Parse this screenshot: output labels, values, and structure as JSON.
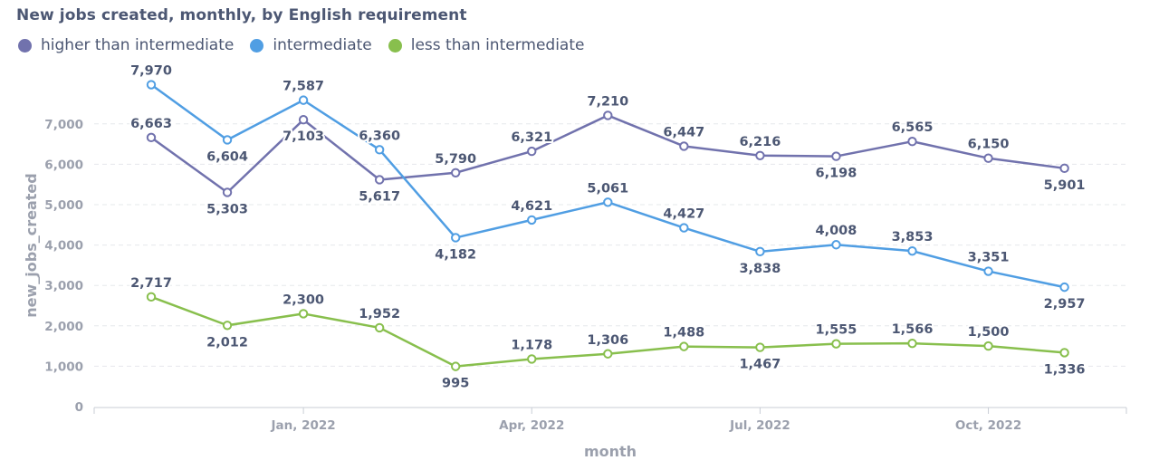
{
  "chart_data": {
    "type": "line",
    "title": "New jobs created, monthly, by English requirement",
    "xlabel": "month",
    "ylabel": "new_jobs_created",
    "ylim": [
      0,
      8000
    ],
    "yticks": [
      0,
      1000,
      2000,
      3000,
      4000,
      5000,
      6000,
      7000
    ],
    "ytick_labels": [
      "0",
      "1,000",
      "2,000",
      "3,000",
      "4,000",
      "5,000",
      "6,000",
      "7,000"
    ],
    "x": [
      "2021-11",
      "2021-12",
      "2022-01",
      "2022-02",
      "2022-03",
      "2022-04",
      "2022-05",
      "2022-06",
      "2022-07",
      "2022-08",
      "2022-09",
      "2022-10",
      "2022-11"
    ],
    "xticks": [
      {
        "index": 2,
        "label": "Jan, 2022"
      },
      {
        "index": 5,
        "label": "Apr, 2022"
      },
      {
        "index": 8,
        "label": "Jul, 2022"
      },
      {
        "index": 11,
        "label": "Oct, 2022"
      }
    ],
    "grid": "horizontal dashed",
    "legend_position": "top-left",
    "series": [
      {
        "name": "higher than intermediate",
        "color": "#7172ad",
        "values": [
          6663,
          5303,
          7103,
          5617,
          5790,
          6321,
          7210,
          6447,
          6216,
          6198,
          6565,
          6150,
          5901
        ],
        "labels": [
          "6,663",
          "5,303",
          "7,103",
          "5,617",
          "5,790",
          "6,321",
          "7,210",
          "6,447",
          "6,216",
          "6,198",
          "6,565",
          "6,150",
          "5,901"
        ],
        "label_pos": [
          "above",
          "below",
          "below",
          "below",
          "above",
          "above",
          "above",
          "above",
          "above",
          "below",
          "above",
          "above",
          "below"
        ]
      },
      {
        "name": "intermediate",
        "color": "#509ee3",
        "values": [
          7970,
          6604,
          7587,
          6360,
          4182,
          4621,
          5061,
          4427,
          3838,
          4008,
          3853,
          3351,
          2957
        ],
        "labels": [
          "7,970",
          "6,604",
          "7,587",
          "6,360",
          "4,182",
          "4,621",
          "5,061",
          "4,427",
          "3,838",
          "4,008",
          "3,853",
          "3,351",
          "2,957"
        ],
        "label_pos": [
          "above",
          "below",
          "above",
          "above",
          "below",
          "above",
          "above",
          "above",
          "below",
          "above",
          "above",
          "above",
          "below"
        ]
      },
      {
        "name": "less than intermediate",
        "color": "#88bf4d",
        "values": [
          2717,
          2012,
          2300,
          1952,
          995,
          1178,
          1306,
          1488,
          1467,
          1555,
          1566,
          1500,
          1336
        ],
        "labels": [
          "2,717",
          "2,012",
          "2,300",
          "1,952",
          "995",
          "1,178",
          "1,306",
          "1,488",
          "1,467",
          "1,555",
          "1,566",
          "1,500",
          "1,336"
        ],
        "label_pos": [
          "above",
          "below",
          "above",
          "above",
          "below",
          "above",
          "above",
          "above",
          "below",
          "above",
          "above",
          "above",
          "below"
        ]
      }
    ]
  }
}
